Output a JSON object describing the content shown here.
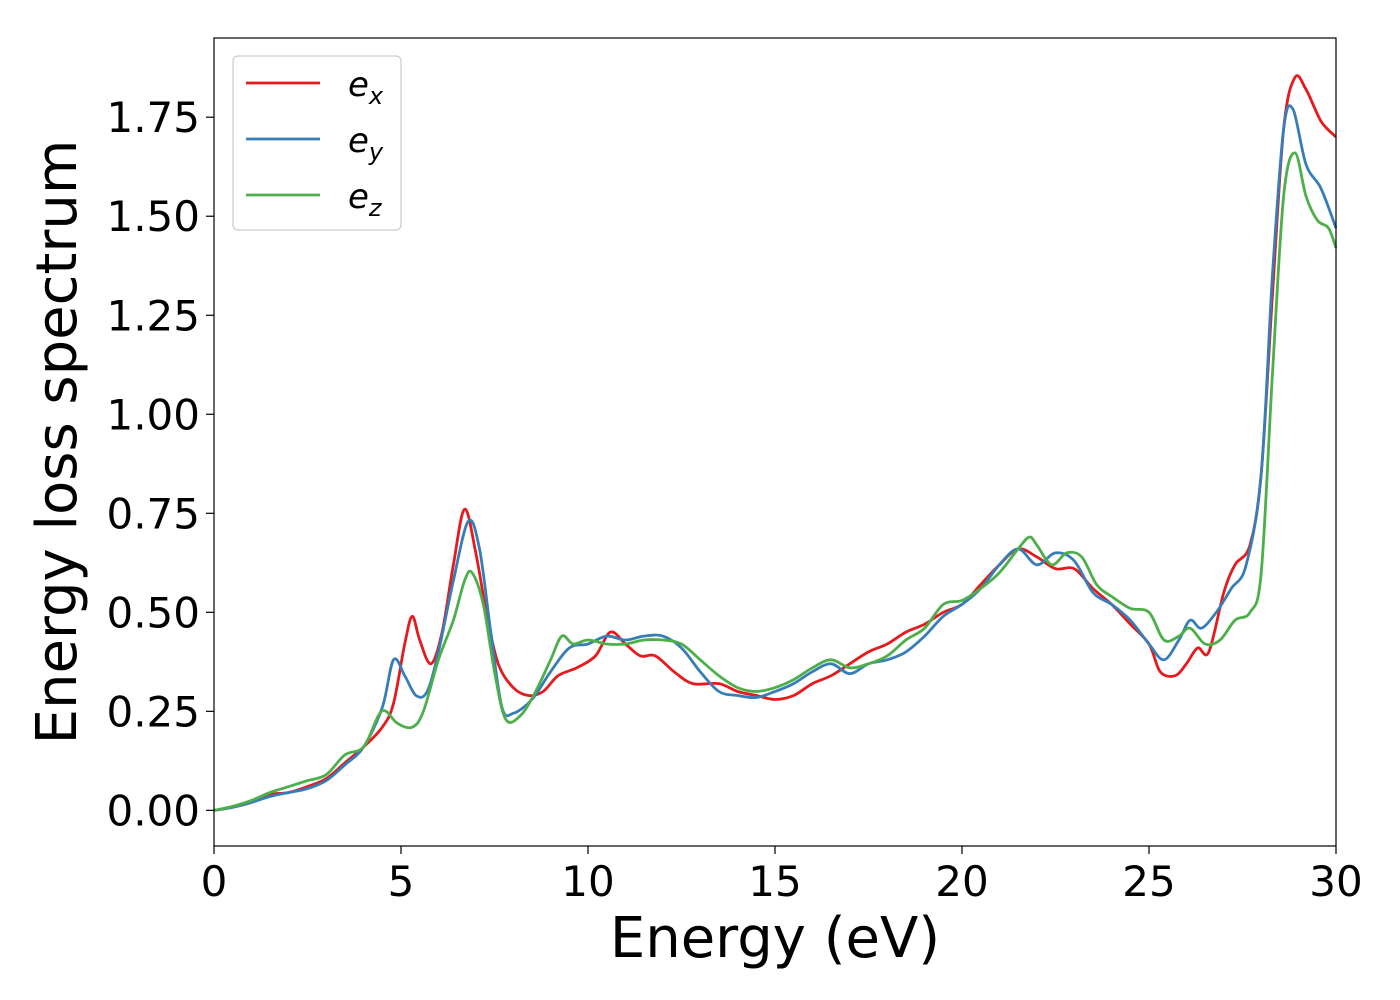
{
  "chart_data": {
    "type": "line",
    "xlabel": "Energy (eV)",
    "ylabel": "Energy loss spectrum",
    "xlim": [
      0,
      30
    ],
    "ylim": [
      -0.09,
      1.95
    ],
    "xticks": [
      0,
      5,
      10,
      15,
      20,
      25,
      30
    ],
    "xtick_labels": [
      "0",
      "5",
      "10",
      "15",
      "20",
      "25",
      "30"
    ],
    "yticks": [
      0,
      0.25,
      0.5,
      0.75,
      1.0,
      1.25,
      1.5,
      1.75
    ],
    "ytick_labels": [
      "0.00",
      "0.25",
      "0.50",
      "0.75",
      "1.00",
      "1.25",
      "1.50",
      "1.75"
    ],
    "grid": false,
    "legend_position": "top-left",
    "series": [
      {
        "name": "e",
        "sub": "x",
        "color": "#e41a1c",
        "points": [
          [
            0,
            0
          ],
          [
            0.5,
            0.008
          ],
          [
            1,
            0.02
          ],
          [
            1.5,
            0.04
          ],
          [
            2,
            0.045
          ],
          [
            2.5,
            0.06
          ],
          [
            3,
            0.08
          ],
          [
            3.5,
            0.12
          ],
          [
            4,
            0.16
          ],
          [
            4.5,
            0.21
          ],
          [
            4.8,
            0.27
          ],
          [
            5.1,
            0.42
          ],
          [
            5.3,
            0.49
          ],
          [
            5.5,
            0.43
          ],
          [
            5.8,
            0.37
          ],
          [
            6.1,
            0.45
          ],
          [
            6.4,
            0.62
          ],
          [
            6.7,
            0.76
          ],
          [
            7,
            0.65
          ],
          [
            7.3,
            0.49
          ],
          [
            7.6,
            0.37
          ],
          [
            8,
            0.31
          ],
          [
            8.4,
            0.29
          ],
          [
            8.8,
            0.3
          ],
          [
            9.2,
            0.34
          ],
          [
            9.7,
            0.36
          ],
          [
            10.2,
            0.39
          ],
          [
            10.6,
            0.45
          ],
          [
            11,
            0.42
          ],
          [
            11.4,
            0.39
          ],
          [
            11.8,
            0.39
          ],
          [
            12.3,
            0.35
          ],
          [
            12.8,
            0.32
          ],
          [
            13.5,
            0.32
          ],
          [
            14,
            0.3
          ],
          [
            14.5,
            0.29
          ],
          [
            15,
            0.28
          ],
          [
            15.5,
            0.29
          ],
          [
            16,
            0.32
          ],
          [
            16.5,
            0.34
          ],
          [
            17,
            0.37
          ],
          [
            17.5,
            0.4
          ],
          [
            18,
            0.42
          ],
          [
            18.5,
            0.45
          ],
          [
            19,
            0.47
          ],
          [
            19.5,
            0.5
          ],
          [
            20,
            0.52
          ],
          [
            20.5,
            0.57
          ],
          [
            21,
            0.62
          ],
          [
            21.5,
            0.66
          ],
          [
            22,
            0.64
          ],
          [
            22.5,
            0.61
          ],
          [
            23,
            0.61
          ],
          [
            23.5,
            0.56
          ],
          [
            24,
            0.52
          ],
          [
            24.5,
            0.47
          ],
          [
            25,
            0.42
          ],
          [
            25.3,
            0.35
          ],
          [
            25.7,
            0.34
          ],
          [
            26,
            0.37
          ],
          [
            26.3,
            0.41
          ],
          [
            26.6,
            0.4
          ],
          [
            27,
            0.55
          ],
          [
            27.3,
            0.62
          ],
          [
            27.7,
            0.67
          ],
          [
            28,
            0.85
          ],
          [
            28.3,
            1.3
          ],
          [
            28.6,
            1.72
          ],
          [
            28.9,
            1.85
          ],
          [
            29.2,
            1.82
          ],
          [
            29.6,
            1.74
          ],
          [
            30,
            1.7
          ]
        ]
      },
      {
        "name": "e",
        "sub": "y",
        "color": "#377eb8",
        "points": [
          [
            0,
            0
          ],
          [
            0.5,
            0.008
          ],
          [
            1,
            0.02
          ],
          [
            1.5,
            0.035
          ],
          [
            2,
            0.045
          ],
          [
            2.5,
            0.055
          ],
          [
            3,
            0.075
          ],
          [
            3.5,
            0.115
          ],
          [
            4,
            0.16
          ],
          [
            4.5,
            0.26
          ],
          [
            4.8,
            0.38
          ],
          [
            5.1,
            0.34
          ],
          [
            5.4,
            0.29
          ],
          [
            5.7,
            0.3
          ],
          [
            6,
            0.4
          ],
          [
            6.4,
            0.58
          ],
          [
            6.8,
            0.73
          ],
          [
            7.1,
            0.66
          ],
          [
            7.4,
            0.45
          ],
          [
            7.7,
            0.26
          ],
          [
            8,
            0.245
          ],
          [
            8.5,
            0.28
          ],
          [
            9,
            0.35
          ],
          [
            9.5,
            0.41
          ],
          [
            10,
            0.42
          ],
          [
            10.5,
            0.44
          ],
          [
            11,
            0.43
          ],
          [
            11.5,
            0.44
          ],
          [
            12,
            0.44
          ],
          [
            12.5,
            0.41
          ],
          [
            13,
            0.35
          ],
          [
            13.5,
            0.3
          ],
          [
            14,
            0.29
          ],
          [
            14.5,
            0.285
          ],
          [
            15,
            0.3
          ],
          [
            15.5,
            0.32
          ],
          [
            16,
            0.35
          ],
          [
            16.5,
            0.37
          ],
          [
            17,
            0.345
          ],
          [
            17.5,
            0.37
          ],
          [
            18,
            0.38
          ],
          [
            18.5,
            0.4
          ],
          [
            19,
            0.44
          ],
          [
            19.5,
            0.49
          ],
          [
            20,
            0.52
          ],
          [
            20.5,
            0.56
          ],
          [
            21,
            0.62
          ],
          [
            21.5,
            0.66
          ],
          [
            22,
            0.62
          ],
          [
            22.5,
            0.65
          ],
          [
            23,
            0.63
          ],
          [
            23.5,
            0.55
          ],
          [
            24,
            0.52
          ],
          [
            24.5,
            0.48
          ],
          [
            25,
            0.42
          ],
          [
            25.4,
            0.38
          ],
          [
            25.8,
            0.43
          ],
          [
            26.1,
            0.48
          ],
          [
            26.4,
            0.46
          ],
          [
            26.8,
            0.5
          ],
          [
            27.2,
            0.56
          ],
          [
            27.6,
            0.62
          ],
          [
            28,
            0.85
          ],
          [
            28.3,
            1.35
          ],
          [
            28.6,
            1.72
          ],
          [
            28.85,
            1.77
          ],
          [
            29.2,
            1.63
          ],
          [
            29.6,
            1.57
          ],
          [
            30,
            1.47
          ]
        ]
      },
      {
        "name": "e",
        "sub": "z",
        "color": "#4daf4a",
        "points": [
          [
            0,
            0
          ],
          [
            0.5,
            0.01
          ],
          [
            1,
            0.025
          ],
          [
            1.5,
            0.045
          ],
          [
            2,
            0.06
          ],
          [
            2.5,
            0.075
          ],
          [
            3,
            0.09
          ],
          [
            3.5,
            0.14
          ],
          [
            4,
            0.16
          ],
          [
            4.4,
            0.24
          ],
          [
            4.6,
            0.25
          ],
          [
            4.9,
            0.22
          ],
          [
            5.3,
            0.21
          ],
          [
            5.6,
            0.25
          ],
          [
            6,
            0.38
          ],
          [
            6.4,
            0.48
          ],
          [
            6.7,
            0.58
          ],
          [
            6.9,
            0.6
          ],
          [
            7.2,
            0.52
          ],
          [
            7.5,
            0.35
          ],
          [
            7.8,
            0.23
          ],
          [
            8.2,
            0.24
          ],
          [
            8.6,
            0.3
          ],
          [
            9,
            0.38
          ],
          [
            9.3,
            0.44
          ],
          [
            9.6,
            0.42
          ],
          [
            10,
            0.43
          ],
          [
            10.5,
            0.42
          ],
          [
            11,
            0.42
          ],
          [
            11.5,
            0.43
          ],
          [
            12,
            0.43
          ],
          [
            12.5,
            0.42
          ],
          [
            13,
            0.38
          ],
          [
            13.5,
            0.34
          ],
          [
            14,
            0.31
          ],
          [
            14.5,
            0.3
          ],
          [
            15,
            0.31
          ],
          [
            15.5,
            0.33
          ],
          [
            16,
            0.36
          ],
          [
            16.5,
            0.38
          ],
          [
            17,
            0.36
          ],
          [
            17.5,
            0.37
          ],
          [
            18,
            0.39
          ],
          [
            18.5,
            0.43
          ],
          [
            19,
            0.46
          ],
          [
            19.5,
            0.52
          ],
          [
            20,
            0.53
          ],
          [
            20.5,
            0.56
          ],
          [
            21,
            0.6
          ],
          [
            21.5,
            0.66
          ],
          [
            21.8,
            0.69
          ],
          [
            22,
            0.67
          ],
          [
            22.4,
            0.62
          ],
          [
            22.8,
            0.65
          ],
          [
            23.2,
            0.64
          ],
          [
            23.6,
            0.57
          ],
          [
            24,
            0.54
          ],
          [
            24.5,
            0.51
          ],
          [
            25,
            0.5
          ],
          [
            25.4,
            0.43
          ],
          [
            25.8,
            0.44
          ],
          [
            26.1,
            0.46
          ],
          [
            26.5,
            0.42
          ],
          [
            26.9,
            0.43
          ],
          [
            27.3,
            0.48
          ],
          [
            27.7,
            0.5
          ],
          [
            28,
            0.6
          ],
          [
            28.3,
            1.1
          ],
          [
            28.6,
            1.55
          ],
          [
            28.9,
            1.66
          ],
          [
            29.2,
            1.55
          ],
          [
            29.5,
            1.49
          ],
          [
            29.8,
            1.47
          ],
          [
            30,
            1.42
          ]
        ]
      }
    ]
  }
}
